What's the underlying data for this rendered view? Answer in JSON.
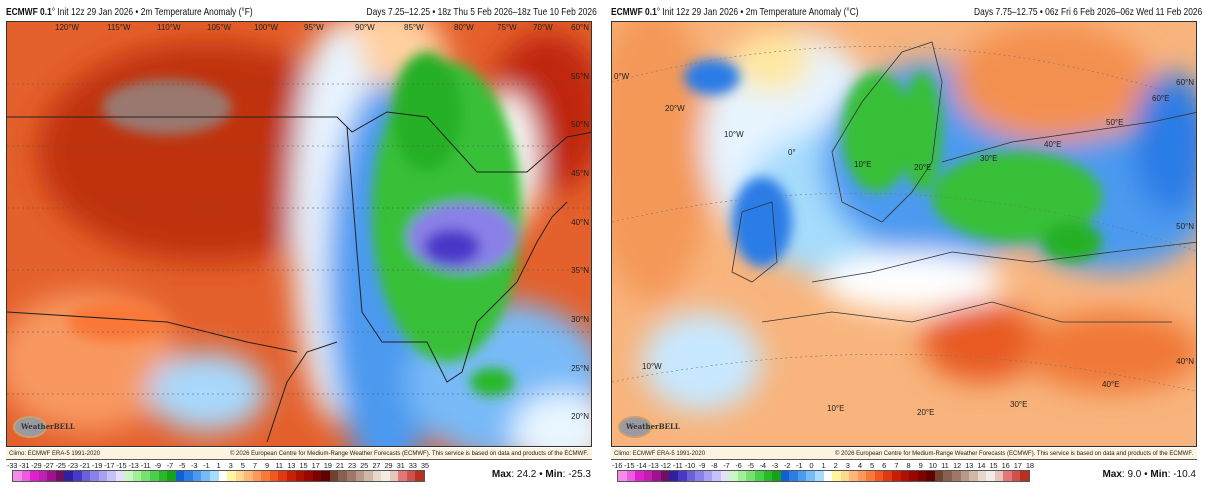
{
  "left": {
    "model": "ECMWF 0.1",
    "title_rest": "° Init 12z 29 Jan 2026 • 2m Temperature Anomaly (°F)",
    "dates": "Days 7.25–12.25 • 18z Thu 5 Feb 2026–18z Tue 10 Feb 2026",
    "lon_labels": [
      "120°W",
      "115°W",
      "110°W",
      "105°W",
      "100°W",
      "95°W",
      "90°W",
      "85°W",
      "80°W",
      "75°W",
      "70°W"
    ],
    "lat_labels": [
      "60°N",
      "55°N",
      "50°N",
      "45°N",
      "40°N",
      "35°N",
      "30°N",
      "25°N",
      "20°N"
    ],
    "logo": "WeatherBELL",
    "climo": "Climo: ECMWF ERA-5 1991-2020",
    "copyright": "© 2026 European Centre for Medium-Range Weather Forecasts (ECMWF). This service is based on data and products of the ECMWF.",
    "colorbar_labels": [
      "-33",
      "-31",
      "-29",
      "-27",
      "-25",
      "-23",
      "-21",
      "-19",
      "-17",
      "-15",
      "-13",
      "-11",
      "-9",
      "-7",
      "-5",
      "-3",
      "-1",
      "1",
      "3",
      "5",
      "7",
      "9",
      "11",
      "13",
      "15",
      "17",
      "19",
      "21",
      "23",
      "25",
      "27",
      "29",
      "31",
      "33",
      "35"
    ],
    "max_label": "Max",
    "max": "24.2",
    "min_label": "Min",
    "min": "-25.3"
  },
  "right": {
    "model": "ECMWF 0.1",
    "title_rest": "° Init 12z 29 Jan 2026 • 2m Temperature Anomaly (°C)",
    "dates": "Days 7.75–12.75 • 06z Fri 6 Feb 2026–06z Wed 11 Feb 2026",
    "grid_labels": [
      "0°W",
      "20°W",
      "10°W",
      "0°",
      "10°E",
      "20°E",
      "30°E",
      "40°E",
      "50°E",
      "60°E",
      "60°N",
      "50°N",
      "40°N",
      "10°W",
      "10°E",
      "20°E",
      "30°E",
      "40°E"
    ],
    "logo": "WeatherBELL",
    "climo": "Climo: ECMWF ERA-5 1991-2020",
    "copyright": "© 2026 European Centre for Medium-Range Weather Forecasts (ECMWF). This service is based on data and products of the ECMWF.",
    "colorbar_labels": [
      "-16",
      "-15",
      "-14",
      "-13",
      "-12",
      "-11",
      "-10",
      "-9",
      "-8",
      "-7",
      "-6",
      "-5",
      "-4",
      "-3",
      "-2",
      "-1",
      "0",
      "1",
      "2",
      "3",
      "4",
      "5",
      "6",
      "7",
      "8",
      "9",
      "10",
      "11",
      "12",
      "13",
      "14",
      "15",
      "16",
      "17",
      "18"
    ],
    "max_label": "Max",
    "max": "9.0",
    "min_label": "Min",
    "min": "-10.4"
  },
  "palette": [
    "#f48ce8",
    "#ec5ce0",
    "#e020d0",
    "#c020b0",
    "#a01090",
    "#701060",
    "#3020a0",
    "#4838c8",
    "#6a60d8",
    "#8a80e8",
    "#a8a0f4",
    "#c8c0fa",
    "#e4e0fc",
    "#c8f8c8",
    "#a0f098",
    "#78e070",
    "#48d048",
    "#28b828",
    "#18a018",
    "#1060d8",
    "#2c7ce6",
    "#4c9af0",
    "#78baf8",
    "#a6dcfc",
    "#ffffff",
    "#fff4a0",
    "#ffd890",
    "#ffb878",
    "#ff9858",
    "#fa7838",
    "#f05820",
    "#e03810",
    "#c81e04",
    "#b01000",
    "#980800",
    "#7c0400",
    "#600000",
    "#704030",
    "#886050",
    "#a07868",
    "#b89888",
    "#d0b8a8",
    "#e8d8cc",
    "#f4ece4",
    "#e8c4bc",
    "#e07878",
    "#d05050",
    "#b83020"
  ]
}
